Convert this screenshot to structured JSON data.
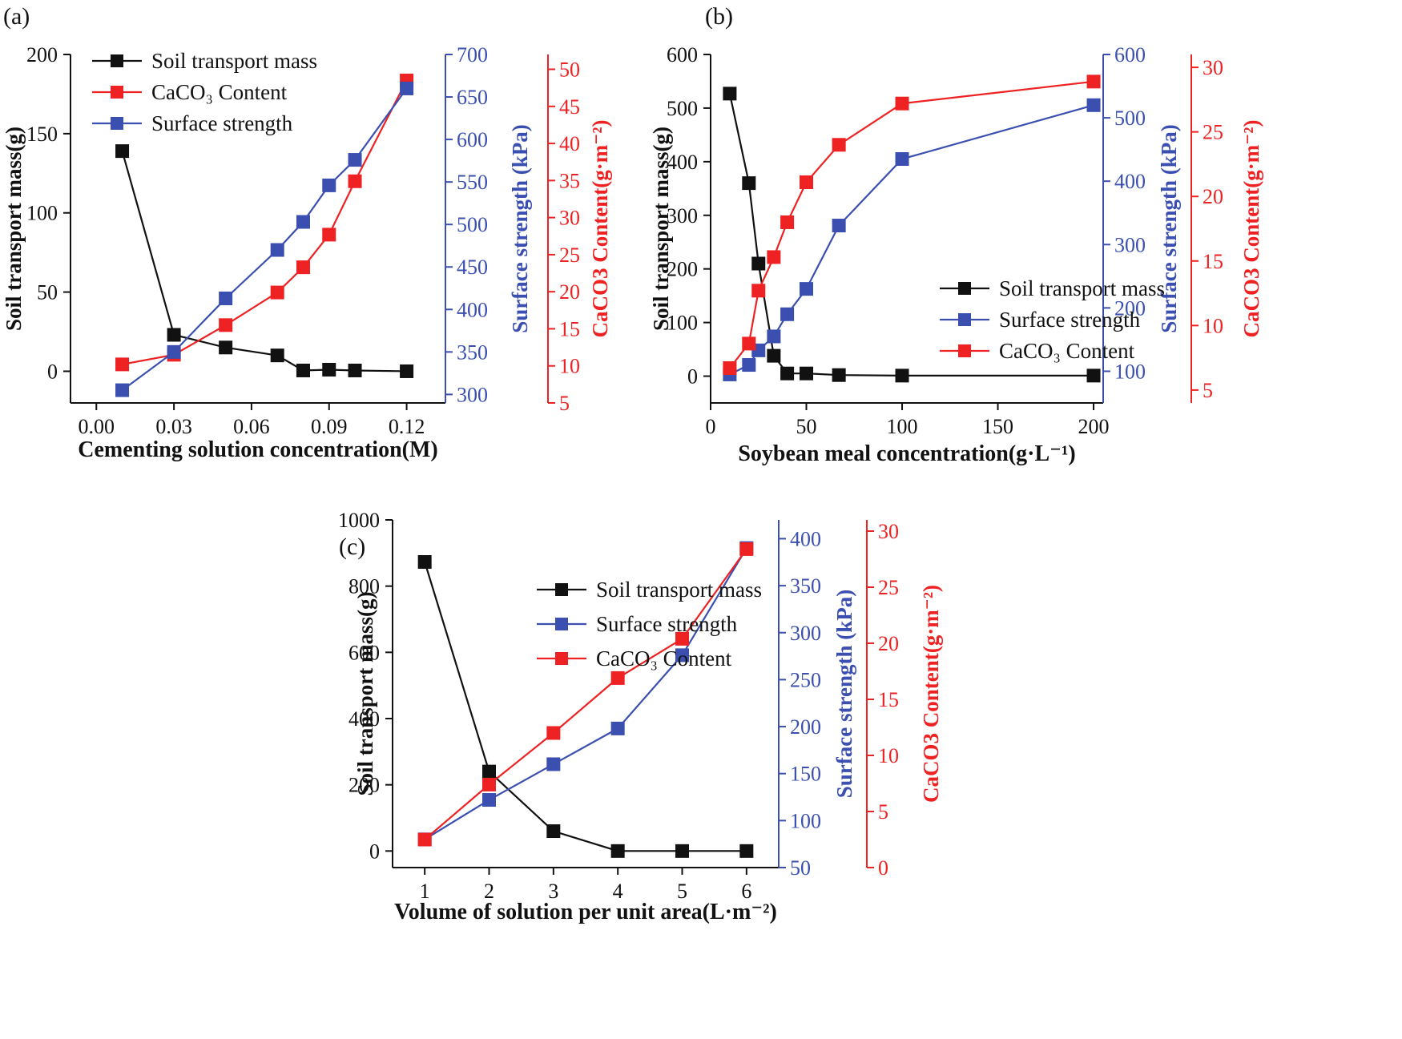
{
  "colors": {
    "soil": "#111111",
    "strength": "#3a4fb0",
    "caco3": "#ee2222",
    "axis": "#111111"
  },
  "chart_data": [
    {
      "type": "line",
      "panel_label": "(a)",
      "xlabel": "Cementing solution concentration(M)",
      "xlim": [
        -0.01,
        0.135
      ],
      "xticks": [
        "0.00",
        "0.03",
        "0.06",
        "0.09",
        "0.12"
      ],
      "axes": [
        {
          "side": "left",
          "label": "Soil transport mass(g)",
          "lim": [
            -20,
            200
          ],
          "ticks": [
            "0",
            "50",
            "100",
            "150",
            "200"
          ]
        },
        {
          "side": "right1",
          "label": "Surface strength (kPa)",
          "lim": [
            290,
            700
          ],
          "ticks": [
            "300",
            "350",
            "400",
            "450",
            "500",
            "550",
            "600",
            "650",
            "700"
          ]
        },
        {
          "side": "right2",
          "label": "CaCO3 Content(g·m⁻²)",
          "lim": [
            5,
            52
          ],
          "ticks": [
            "5",
            "10",
            "15",
            "20",
            "25",
            "30",
            "35",
            "40",
            "45",
            "50"
          ]
        }
      ],
      "legend": {
        "position": "top-left",
        "items": [
          "Soil transport mass",
          "CaCO₃ Content",
          "Surface strength"
        ]
      },
      "series": [
        {
          "name": "Soil transport mass",
          "axis": 0,
          "color": "soil",
          "x": [
            0.01,
            0.03,
            0.05,
            0.07,
            0.08,
            0.09,
            0.1,
            0.12
          ],
          "values": [
            139,
            23,
            15,
            10,
            0.5,
            1,
            0.5,
            0
          ]
        },
        {
          "name": "CaCO₃ Content",
          "axis": 2,
          "color": "caco3",
          "x": [
            0.01,
            0.03,
            0.05,
            0.07,
            0.08,
            0.09,
            0.1,
            0.12
          ],
          "values": [
            10.2,
            11.5,
            15.5,
            19.9,
            23.3,
            27.7,
            34.9,
            48.5
          ]
        },
        {
          "name": "Surface strength",
          "axis": 1,
          "color": "strength",
          "x": [
            0.01,
            0.03,
            0.05,
            0.07,
            0.08,
            0.09,
            0.1,
            0.12
          ],
          "values": [
            305,
            350,
            413,
            470,
            503,
            546,
            576,
            660
          ]
        }
      ]
    },
    {
      "type": "line",
      "panel_label": "(b)",
      "xlabel": "Soybean meal concentration(g·L⁻¹)",
      "xlim": [
        0,
        205
      ],
      "xticks": [
        "0",
        "50",
        "100",
        "150",
        "200"
      ],
      "axes": [
        {
          "side": "left",
          "label": "Soil transport mass(g)",
          "lim": [
            -50,
            600
          ],
          "ticks": [
            "0",
            "100",
            "200",
            "300",
            "400",
            "500",
            "600"
          ]
        },
        {
          "side": "right1",
          "label": "Surface strength (kPa)",
          "lim": [
            50,
            600
          ],
          "ticks": [
            "100",
            "200",
            "300",
            "400",
            "500",
            "600"
          ]
        },
        {
          "side": "right2",
          "label": "CaCO3 Content(g·m⁻²)",
          "lim": [
            4,
            31
          ],
          "ticks": [
            "5",
            "10",
            "15",
            "20",
            "25",
            "30"
          ]
        }
      ],
      "legend": {
        "position": "center-right",
        "items": [
          "Soil transport mass",
          "Surface strength",
          "CaCO₃ Content"
        ]
      },
      "series": [
        {
          "name": "Soil transport mass",
          "axis": 0,
          "color": "soil",
          "x": [
            10,
            20,
            25,
            33,
            40,
            50,
            67,
            100,
            200
          ],
          "values": [
            527,
            360,
            210,
            38,
            5,
            5,
            2,
            1,
            1
          ]
        },
        {
          "name": "Surface strength",
          "axis": 1,
          "color": "strength",
          "x": [
            10,
            20,
            25,
            33,
            40,
            50,
            67,
            100,
            200
          ],
          "values": [
            95,
            110,
            133,
            155,
            190,
            230,
            330,
            435,
            520
          ]
        },
        {
          "name": "CaCO₃ Content",
          "axis": 2,
          "color": "caco3",
          "x": [
            10,
            20,
            25,
            33,
            40,
            50,
            67,
            100,
            200
          ],
          "values": [
            6.7,
            8.6,
            12.7,
            15.3,
            18.0,
            21.1,
            24.0,
            27.2,
            28.9
          ]
        }
      ]
    },
    {
      "type": "line",
      "panel_label": "(c)",
      "xlabel": "Volume of solution per unit area(L·m⁻²)",
      "xlim": [
        0.5,
        6.5
      ],
      "xticks": [
        "1",
        "2",
        "3",
        "4",
        "5",
        "6"
      ],
      "axes": [
        {
          "side": "left",
          "label": "Soil transport mass(g)",
          "lim": [
            -50,
            1000
          ],
          "ticks": [
            "0",
            "200",
            "400",
            "600",
            "800",
            "1000"
          ]
        },
        {
          "side": "right1",
          "label": "Surface strength (kPa)",
          "lim": [
            50,
            420
          ],
          "ticks": [
            "50",
            "100",
            "150",
            "200",
            "250",
            "300",
            "350",
            "400"
          ]
        },
        {
          "side": "right2",
          "label": "CaCO3 Content(g·m⁻²)",
          "lim": [
            0,
            31
          ],
          "ticks": [
            "0",
            "5",
            "10",
            "15",
            "20",
            "25",
            "30"
          ]
        }
      ],
      "legend": {
        "position": "top-center",
        "items": [
          "Soil transport mass",
          "Surface strength",
          "CaCO₃ Content"
        ]
      },
      "series": [
        {
          "name": "Soil transport mass",
          "axis": 0,
          "color": "soil",
          "x": [
            1,
            2,
            3,
            4,
            5,
            6
          ],
          "values": [
            873,
            240,
            60,
            0,
            0,
            0
          ]
        },
        {
          "name": "Surface strength",
          "axis": 1,
          "color": "strength",
          "x": [
            1,
            2,
            3,
            4,
            5,
            6
          ],
          "values": [
            80,
            122,
            160,
            198,
            276,
            390
          ]
        },
        {
          "name": "CaCO₃ Content",
          "axis": 2,
          "color": "caco3",
          "x": [
            1,
            2,
            3,
            4,
            5,
            6
          ],
          "values": [
            2.5,
            7.4,
            12.0,
            16.9,
            20.4,
            28.4
          ]
        }
      ]
    }
  ]
}
